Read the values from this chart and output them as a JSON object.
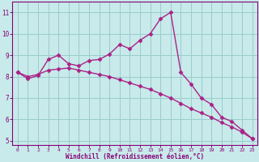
{
  "line1_x": [
    0,
    1,
    2,
    3,
    4,
    5,
    6,
    7,
    8,
    9,
    10,
    11,
    12,
    13,
    14,
    15,
    16,
    17,
    18,
    19,
    20,
    21,
    22,
    23
  ],
  "line1_y": [
    8.2,
    7.9,
    8.05,
    8.8,
    9.0,
    8.6,
    8.5,
    8.75,
    8.8,
    9.05,
    9.5,
    9.3,
    9.7,
    10.0,
    10.7,
    11.0,
    8.2,
    7.65,
    7.0,
    6.7,
    6.1,
    5.9,
    5.5,
    5.1
  ],
  "line2_x": [
    0,
    1,
    2,
    3,
    4,
    5,
    6,
    7,
    8,
    9,
    10,
    11,
    12,
    13,
    14,
    15,
    16,
    17,
    18,
    19,
    20,
    21,
    22,
    23
  ],
  "line2_y": [
    8.2,
    8.0,
    8.1,
    8.3,
    8.35,
    8.4,
    8.3,
    8.2,
    8.1,
    8.0,
    7.85,
    7.7,
    7.55,
    7.4,
    7.2,
    7.0,
    6.75,
    6.5,
    6.3,
    6.1,
    5.85,
    5.65,
    5.4,
    5.1
  ],
  "line_color": "#aa2288",
  "bg_color": "#c8eaea",
  "grid_color": "#99cccc",
  "axis_color": "#880077",
  "xlabel": "Windchill (Refroidissement éolien,°C)",
  "tick_color": "#880077",
  "xlim": [
    -0.5,
    23.5
  ],
  "ylim": [
    4.8,
    11.5
  ],
  "yticks": [
    5,
    6,
    7,
    8,
    9,
    10,
    11
  ],
  "xticks": [
    0,
    1,
    2,
    3,
    4,
    5,
    6,
    7,
    8,
    9,
    10,
    11,
    12,
    13,
    14,
    15,
    16,
    17,
    18,
    19,
    20,
    21,
    22,
    23
  ],
  "marker": "D",
  "marker_size": 2.5,
  "line_width": 1.0
}
